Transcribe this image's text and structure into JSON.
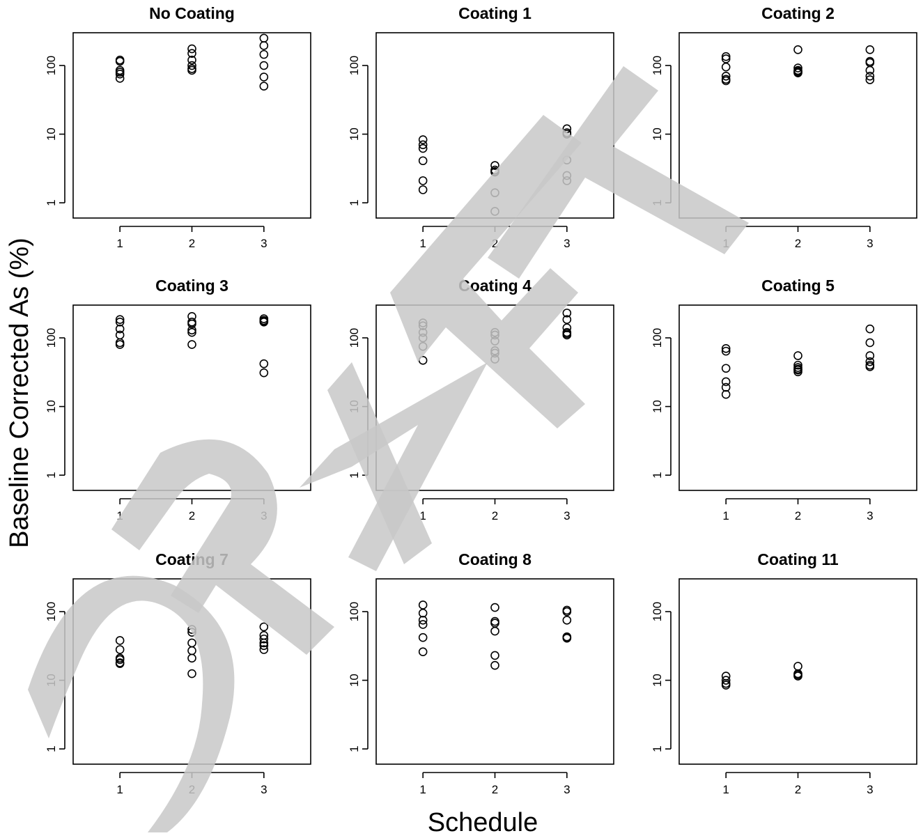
{
  "chart_data": {
    "type": "scatter",
    "layout": "3x3 small multiples",
    "xlabel": "Schedule",
    "ylabel": "Baseline Corrected As (%)",
    "x_ticks": [
      1,
      2,
      3
    ],
    "x_range": [
      0.35,
      3.65
    ],
    "y_scale": "log",
    "y_ticks": [
      1,
      10,
      100
    ],
    "y_range": [
      0.6,
      300
    ],
    "watermark": "DRAFT",
    "colors": {
      "points": "#000000",
      "watermark": "#c8c8c8"
    },
    "panels": [
      {
        "title": "No Coating",
        "points": [
          [
            1,
            120
          ],
          [
            1,
            115
          ],
          [
            1,
            85
          ],
          [
            1,
            80
          ],
          [
            1,
            75
          ],
          [
            1,
            65
          ],
          [
            2,
            175
          ],
          [
            2,
            150
          ],
          [
            2,
            120
          ],
          [
            2,
            100
          ],
          [
            2,
            90
          ],
          [
            2,
            85
          ],
          [
            3,
            250
          ],
          [
            3,
            195
          ],
          [
            3,
            145
          ],
          [
            3,
            100
          ],
          [
            3,
            68
          ],
          [
            3,
            50
          ]
        ]
      },
      {
        "title": "Coating 1",
        "points": [
          [
            1,
            8.3
          ],
          [
            1,
            7
          ],
          [
            1,
            6.2
          ],
          [
            1,
            4.1
          ],
          [
            1,
            2.1
          ],
          [
            1,
            1.55
          ],
          [
            2,
            3.5
          ],
          [
            2,
            3
          ],
          [
            2,
            2.85
          ],
          [
            2,
            2.8
          ],
          [
            2,
            1.4
          ],
          [
            2,
            0.75
          ],
          [
            3,
            12
          ],
          [
            3,
            10.5
          ],
          [
            3,
            10
          ],
          [
            3,
            4.2
          ],
          [
            3,
            2.5
          ],
          [
            3,
            2.1
          ]
        ]
      },
      {
        "title": "Coating 2",
        "points": [
          [
            1,
            135
          ],
          [
            1,
            125
          ],
          [
            1,
            95
          ],
          [
            1,
            70
          ],
          [
            1,
            63
          ],
          [
            1,
            60
          ],
          [
            2,
            170
          ],
          [
            2,
            92
          ],
          [
            2,
            85
          ],
          [
            2,
            82
          ],
          [
            2,
            80
          ],
          [
            2,
            78
          ],
          [
            3,
            170
          ],
          [
            3,
            115
          ],
          [
            3,
            110
          ],
          [
            3,
            85
          ],
          [
            3,
            70
          ],
          [
            3,
            62
          ]
        ]
      },
      {
        "title": "Coating 3",
        "points": [
          [
            1,
            185
          ],
          [
            1,
            170
          ],
          [
            1,
            135
          ],
          [
            1,
            110
          ],
          [
            1,
            85
          ],
          [
            1,
            80
          ],
          [
            2,
            205
          ],
          [
            2,
            170
          ],
          [
            2,
            160
          ],
          [
            2,
            130
          ],
          [
            2,
            120
          ],
          [
            2,
            80
          ],
          [
            3,
            190
          ],
          [
            3,
            180
          ],
          [
            3,
            175
          ],
          [
            3,
            170
          ],
          [
            3,
            42
          ],
          [
            3,
            31
          ]
        ]
      },
      {
        "title": "Coating 4",
        "points": [
          [
            1,
            165
          ],
          [
            1,
            150
          ],
          [
            1,
            120
          ],
          [
            1,
            100
          ],
          [
            1,
            75
          ],
          [
            1,
            47
          ],
          [
            2,
            120
          ],
          [
            2,
            110
          ],
          [
            2,
            90
          ],
          [
            2,
            65
          ],
          [
            2,
            60
          ],
          [
            2,
            49
          ],
          [
            3,
            230
          ],
          [
            3,
            185
          ],
          [
            3,
            140
          ],
          [
            3,
            120
          ],
          [
            3,
            115
          ],
          [
            3,
            110
          ]
        ]
      },
      {
        "title": "Coating 5",
        "points": [
          [
            1,
            70
          ],
          [
            1,
            64
          ],
          [
            1,
            36
          ],
          [
            1,
            23
          ],
          [
            1,
            19
          ],
          [
            1,
            15
          ],
          [
            2,
            55
          ],
          [
            2,
            40
          ],
          [
            2,
            37
          ],
          [
            2,
            35
          ],
          [
            2,
            34
          ],
          [
            2,
            32
          ],
          [
            3,
            135
          ],
          [
            3,
            85
          ],
          [
            3,
            55
          ],
          [
            3,
            45
          ],
          [
            3,
            40
          ],
          [
            3,
            38
          ]
        ]
      },
      {
        "title": "Coating 7",
        "points": [
          [
            1,
            38
          ],
          [
            1,
            28
          ],
          [
            1,
            21
          ],
          [
            1,
            20
          ],
          [
            1,
            18
          ],
          [
            1,
            17.5
          ],
          [
            2,
            55
          ],
          [
            2,
            50
          ],
          [
            2,
            35
          ],
          [
            2,
            27
          ],
          [
            2,
            21
          ],
          [
            2,
            12.5
          ],
          [
            3,
            60
          ],
          [
            3,
            45
          ],
          [
            3,
            40
          ],
          [
            3,
            35
          ],
          [
            3,
            32
          ],
          [
            3,
            28
          ]
        ]
      },
      {
        "title": "Coating 8",
        "points": [
          [
            1,
            125
          ],
          [
            1,
            95
          ],
          [
            1,
            75
          ],
          [
            1,
            65
          ],
          [
            1,
            42
          ],
          [
            1,
            26
          ],
          [
            2,
            115
          ],
          [
            2,
            72
          ],
          [
            2,
            68
          ],
          [
            2,
            52
          ],
          [
            2,
            23
          ],
          [
            2,
            16.5
          ],
          [
            3,
            105
          ],
          [
            3,
            100
          ],
          [
            3,
            75
          ],
          [
            3,
            43
          ],
          [
            3,
            42
          ],
          [
            3,
            41
          ]
        ]
      },
      {
        "title": "Coating 11",
        "points": [
          [
            1,
            11.5
          ],
          [
            1,
            10
          ],
          [
            1,
            9
          ],
          [
            1,
            8.5
          ],
          [
            2,
            16
          ],
          [
            2,
            12.5
          ],
          [
            2,
            12
          ],
          [
            2,
            11.5
          ]
        ]
      }
    ]
  }
}
